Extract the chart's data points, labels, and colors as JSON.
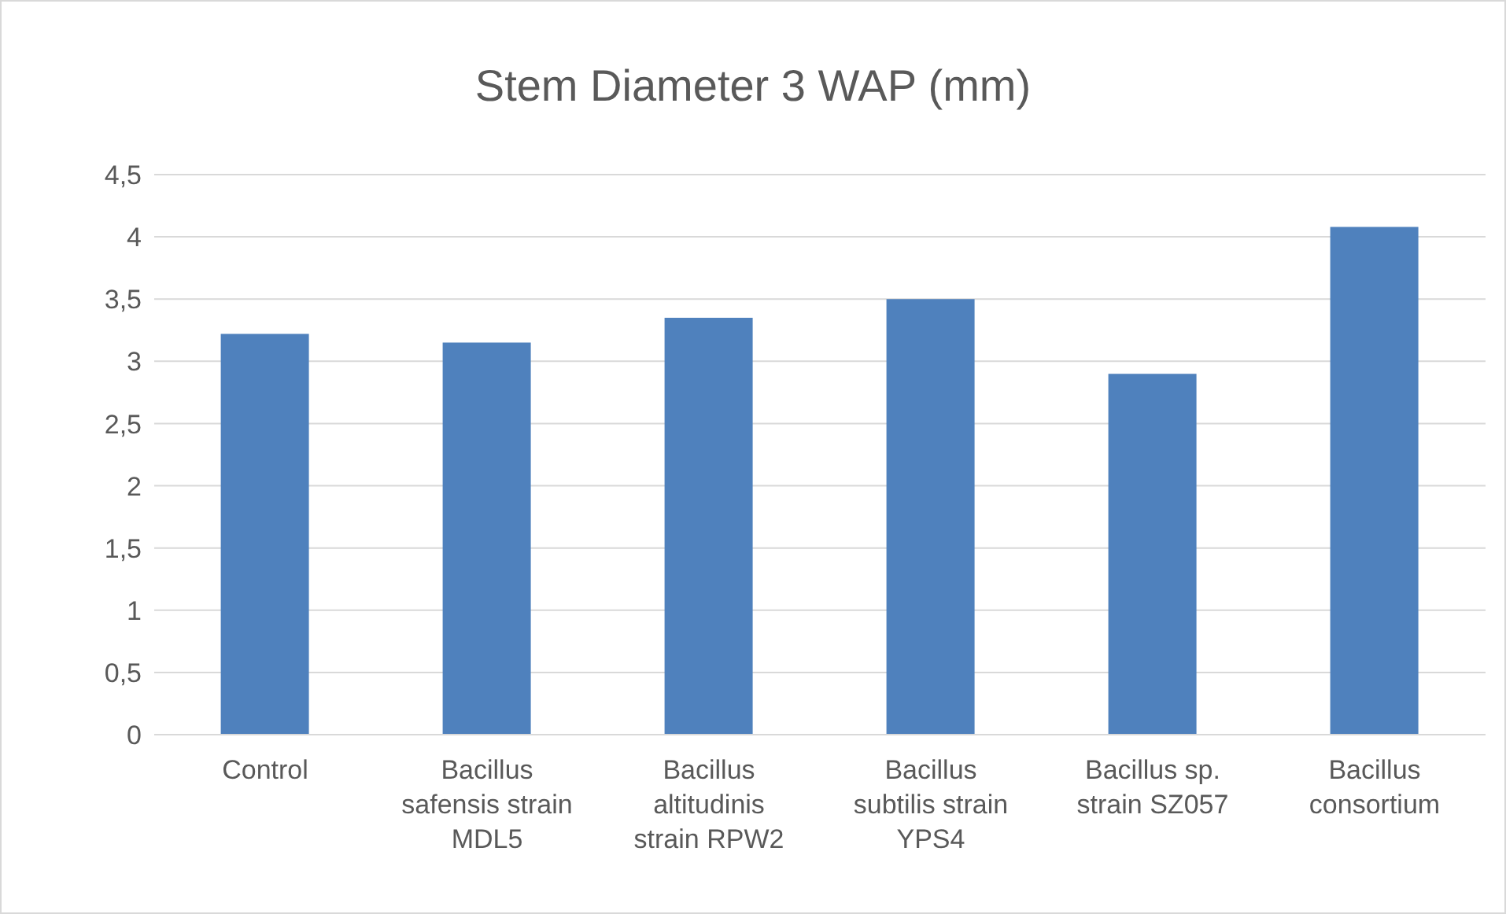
{
  "chart_data": {
    "type": "bar",
    "title": "Stem Diameter 3 WAP (mm)",
    "categories": [
      "Control",
      "Bacillus safensis strain MDL5",
      "Bacillus altitudinis strain RPW2",
      "Bacillus subtilis strain YPS4",
      "Bacillus sp. strain SZ057",
      "Bacillus consortium"
    ],
    "values": [
      3.22,
      3.15,
      3.35,
      3.5,
      2.9,
      4.08
    ],
    "color": "#4f81bd",
    "ylim": [
      0,
      4.5
    ],
    "yticks": [
      0,
      {
        "value": 0.5,
        "label": "0,5"
      },
      1,
      {
        "value": 1.5,
        "label": "1,5"
      },
      2,
      {
        "value": 2.5,
        "label": "2,5"
      },
      3,
      {
        "value": 3.5,
        "label": "3,5"
      },
      4,
      {
        "value": 4.5,
        "label": "4,5"
      }
    ],
    "grid": "y",
    "legend": false
  }
}
